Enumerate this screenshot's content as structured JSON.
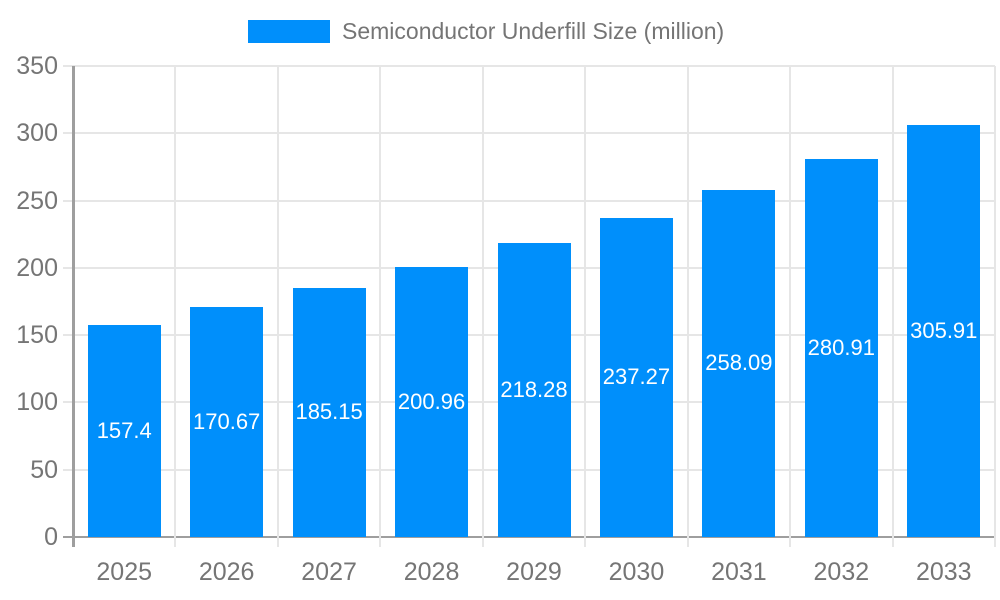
{
  "legend": {
    "label": "Semiconductor Underfill Size (million)",
    "swatch_color": "#008FFB"
  },
  "chart_data": {
    "type": "bar",
    "title": "Semiconductor Underfill Size (million)",
    "categories": [
      "2025",
      "2026",
      "2027",
      "2028",
      "2029",
      "2030",
      "2031",
      "2032",
      "2033"
    ],
    "values": [
      157.4,
      170.67,
      185.15,
      200.96,
      218.28,
      237.27,
      258.09,
      280.91,
      305.91
    ],
    "data_labels": [
      "157.4",
      "170.67",
      "185.15",
      "200.96",
      "218.28",
      "237.27",
      "258.09",
      "280.91",
      "305.91"
    ],
    "xlabel": "",
    "ylabel": "",
    "ylim": [
      0,
      350
    ],
    "ytick_step": 50,
    "ytick_labels": [
      "0",
      "50",
      "100",
      "150",
      "200",
      "250",
      "300",
      "350"
    ],
    "grid": true,
    "legend_position": "top-center",
    "colors": {
      "bar": "#008FFB",
      "bar_label": "#ffffff",
      "axis_text": "#757575",
      "gridline": "#e6e6e6",
      "axis_line": "#9e9e9e"
    }
  }
}
